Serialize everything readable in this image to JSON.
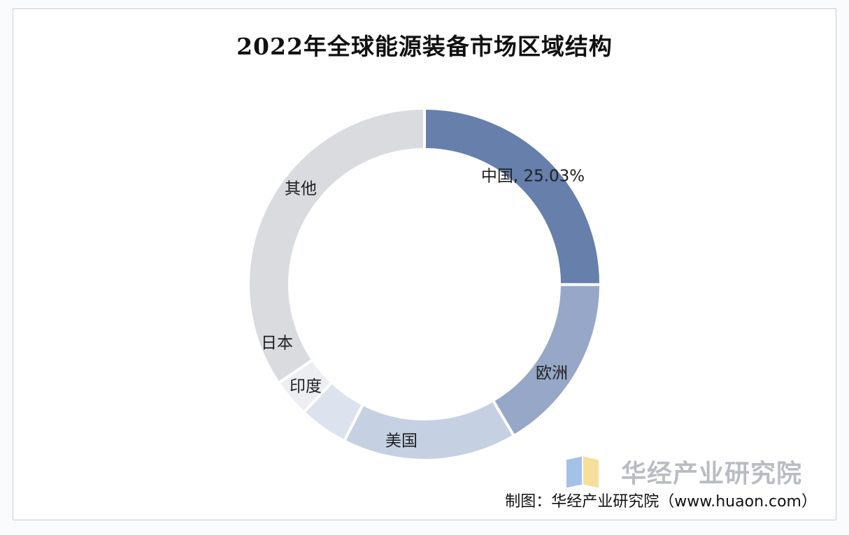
{
  "chart_data": {
    "type": "pie",
    "title": "2022年全球能源装备市场区域结构",
    "donut": true,
    "start_angle_deg": 0,
    "direction": "clockwise",
    "slices": [
      {
        "label": "中国, 25.03%",
        "value": 25.03,
        "color": "#667fab"
      },
      {
        "label": "欧洲",
        "value": 16.5,
        "color": "#96a7c7"
      },
      {
        "label": "美国",
        "value": 16.0,
        "color": "#c5d1e3"
      },
      {
        "label": "印度",
        "value": 4.5,
        "color": "#dce3ee"
      },
      {
        "label": "日本",
        "value": 3.5,
        "color": "#eceef2"
      },
      {
        "label": "其他",
        "value": 34.47,
        "color": "#d9dbdf"
      }
    ]
  },
  "watermark": {
    "text": "华经产业研究院"
  },
  "source": {
    "text": "制图：华经产业研究院（www.huaon.com）"
  }
}
